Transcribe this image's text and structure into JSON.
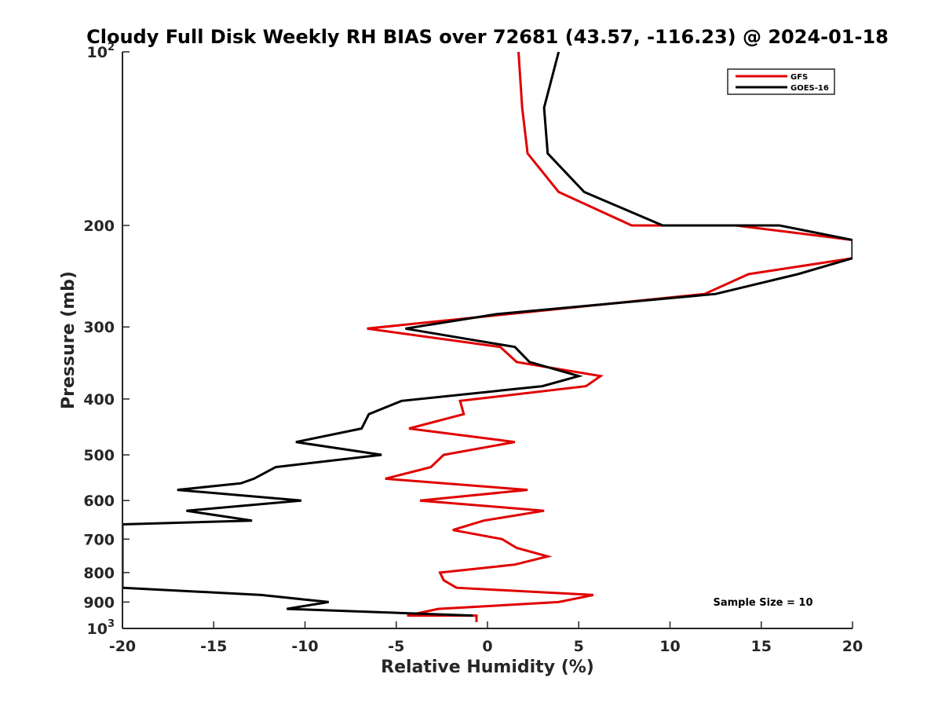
{
  "chart_data": {
    "type": "line",
    "title": "Cloudy Full Disk Weekly RH BIAS over 72681 (43.57, -116.23) @ 2024-01-18",
    "xlabel": "Relative Humidity (%)",
    "ylabel": "Pressure (mb)",
    "xlim": [
      -20,
      20
    ],
    "ylim": [
      100,
      1000
    ],
    "yscale": "log",
    "y_reversed": true,
    "x_ticks": [
      -20,
      -15,
      -10,
      -5,
      0,
      5,
      10,
      15,
      20
    ],
    "x_tick_labels": [
      "-20",
      "-15",
      "-10",
      "-5",
      "0",
      "5",
      "10",
      "15",
      "20"
    ],
    "y_ticks": [
      100,
      200,
      300,
      400,
      500,
      600,
      700,
      800,
      900,
      1000
    ],
    "y_tick_labels": [
      {
        "base": "10",
        "exp": "2"
      },
      {
        "base": "200",
        "exp": ""
      },
      {
        "base": "300",
        "exp": ""
      },
      {
        "base": "400",
        "exp": ""
      },
      {
        "base": "500",
        "exp": ""
      },
      {
        "base": "600",
        "exp": ""
      },
      {
        "base": "700",
        "exp": ""
      },
      {
        "base": "800",
        "exp": ""
      },
      {
        "base": "900",
        "exp": ""
      },
      {
        "base": "10",
        "exp": "3"
      }
    ],
    "grid": false,
    "legend_position": "top-right",
    "annotation": "Sample Size = 10",
    "series": [
      {
        "name": "GFS",
        "color": "#e00000",
        "points": [
          [
            1.7,
            100
          ],
          [
            1.9,
            125
          ],
          [
            2.2,
            150
          ],
          [
            3.9,
            175
          ],
          [
            7.9,
            200
          ],
          [
            13.6,
            200
          ],
          [
            20.0,
            212
          ],
          [
            20.0,
            228
          ],
          [
            14.3,
            243
          ],
          [
            11.9,
            263
          ],
          [
            -6.6,
            302
          ],
          [
            0.7,
            325
          ],
          [
            1.6,
            345
          ],
          [
            6.2,
            365
          ],
          [
            5.4,
            380
          ],
          [
            -1.5,
            403
          ],
          [
            -1.3,
            425
          ],
          [
            -4.3,
            450
          ],
          [
            1.5,
            475
          ],
          [
            -2.4,
            500
          ],
          [
            -3.1,
            525
          ],
          [
            -5.6,
            550
          ],
          [
            2.2,
            575
          ],
          [
            -3.7,
            600
          ],
          [
            3.1,
            625
          ],
          [
            -0.2,
            650
          ],
          [
            -1.9,
            675
          ],
          [
            0.8,
            700
          ],
          [
            1.6,
            725
          ],
          [
            3.3,
            750
          ],
          [
            1.5,
            775
          ],
          [
            -2.6,
            800
          ],
          [
            -2.4,
            825
          ],
          [
            -1.7,
            850
          ],
          [
            5.8,
            875
          ],
          [
            3.9,
            900
          ],
          [
            -2.7,
            925
          ],
          [
            -4.4,
            950
          ],
          [
            -0.6,
            950
          ],
          [
            -0.6,
            975
          ]
        ]
      },
      {
        "name": "GOES-16",
        "color": "#000000",
        "points": [
          [
            3.9,
            100
          ],
          [
            3.1,
            125
          ],
          [
            3.3,
            150
          ],
          [
            5.3,
            175
          ],
          [
            9.6,
            200
          ],
          [
            16.0,
            200
          ],
          [
            20.0,
            212
          ],
          [
            20.0,
            228
          ],
          [
            17.0,
            243
          ],
          [
            12.5,
            263
          ],
          [
            0.5,
            285
          ],
          [
            -4.5,
            302
          ],
          [
            1.5,
            325
          ],
          [
            2.3,
            345
          ],
          [
            5.0,
            365
          ],
          [
            3.0,
            380
          ],
          [
            -4.7,
            403
          ],
          [
            -6.5,
            425
          ],
          [
            -6.9,
            450
          ],
          [
            -10.5,
            475
          ],
          [
            -5.8,
            500
          ],
          [
            -11.6,
            525
          ],
          [
            -12.8,
            550
          ],
          [
            -13.5,
            560
          ],
          [
            -17.0,
            575
          ],
          [
            -10.2,
            600
          ],
          [
            -16.5,
            625
          ],
          [
            -12.9,
            650
          ],
          [
            -20.0,
            660
          ],
          [
            -20.0,
            850
          ],
          [
            -12.4,
            875
          ],
          [
            -8.7,
            900
          ],
          [
            -11.0,
            925
          ],
          [
            -0.8,
            950
          ]
        ]
      }
    ]
  }
}
